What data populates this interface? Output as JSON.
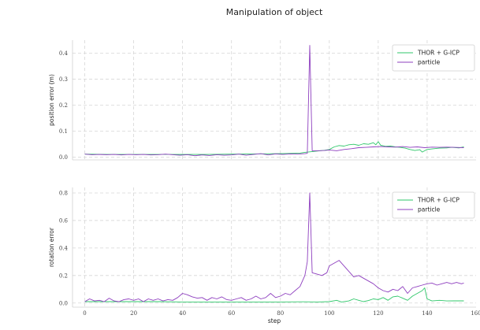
{
  "figure_title": "Manipulation of object",
  "colors": {
    "thor": "#2fc76a",
    "particle": "#8e3fbf"
  },
  "chart_data": [
    {
      "type": "line",
      "title": "",
      "xlabel": "",
      "ylabel": "position error (m)",
      "xlim": [
        -5,
        160
      ],
      "ylim": [
        -0.01,
        0.45
      ],
      "xticks": [
        0,
        20,
        40,
        60,
        80,
        100,
        120,
        140,
        160
      ],
      "yticks": [
        0.0,
        0.1,
        0.2,
        0.3,
        0.4
      ],
      "ytick_labels": [
        "0.0",
        "0.1",
        "0.2",
        "0.3",
        "0.4"
      ],
      "grid": true,
      "legend_position": "top-right",
      "series": [
        {
          "name": "THOR + G-ICP",
          "color": "#2fc76a",
          "points": [
            [
              0,
              0.012
            ],
            [
              10,
              0.011
            ],
            [
              20,
              0.011
            ],
            [
              30,
              0.011
            ],
            [
              40,
              0.011
            ],
            [
              50,
              0.011
            ],
            [
              60,
              0.012
            ],
            [
              70,
              0.013
            ],
            [
              80,
              0.014
            ],
            [
              88,
              0.016
            ],
            [
              90,
              0.019
            ],
            [
              92,
              0.021
            ],
            [
              95,
              0.024
            ],
            [
              98,
              0.027
            ],
            [
              100,
              0.03
            ],
            [
              102,
              0.04
            ],
            [
              104,
              0.045
            ],
            [
              106,
              0.043
            ],
            [
              108,
              0.048
            ],
            [
              110,
              0.05
            ],
            [
              112,
              0.046
            ],
            [
              114,
              0.052
            ],
            [
              116,
              0.05
            ],
            [
              118,
              0.056
            ],
            [
              119,
              0.048
            ],
            [
              120,
              0.06
            ],
            [
              121,
              0.046
            ],
            [
              123,
              0.042
            ],
            [
              125,
              0.043
            ],
            [
              127,
              0.04
            ],
            [
              129,
              0.038
            ],
            [
              131,
              0.035
            ],
            [
              133,
              0.03
            ],
            [
              135,
              0.026
            ],
            [
              137,
              0.029
            ],
            [
              138,
              0.02
            ],
            [
              139,
              0.025
            ],
            [
              140,
              0.03
            ],
            [
              142,
              0.032
            ],
            [
              145,
              0.035
            ],
            [
              148,
              0.036
            ],
            [
              150,
              0.038
            ],
            [
              153,
              0.036
            ],
            [
              155,
              0.04
            ]
          ]
        },
        {
          "name": "particle",
          "color": "#8e3fbf",
          "points": [
            [
              0,
              0.012
            ],
            [
              3,
              0.01
            ],
            [
              6,
              0.011
            ],
            [
              9,
              0.01
            ],
            [
              12,
              0.011
            ],
            [
              15,
              0.009
            ],
            [
              18,
              0.011
            ],
            [
              21,
              0.01
            ],
            [
              24,
              0.011
            ],
            [
              27,
              0.009
            ],
            [
              30,
              0.01
            ],
            [
              33,
              0.012
            ],
            [
              36,
              0.01
            ],
            [
              39,
              0.008
            ],
            [
              42,
              0.01
            ],
            [
              45,
              0.006
            ],
            [
              48,
              0.009
            ],
            [
              51,
              0.007
            ],
            [
              54,
              0.01
            ],
            [
              57,
              0.008
            ],
            [
              60,
              0.009
            ],
            [
              63,
              0.012
            ],
            [
              66,
              0.008
            ],
            [
              69,
              0.011
            ],
            [
              72,
              0.014
            ],
            [
              75,
              0.009
            ],
            [
              78,
              0.013
            ],
            [
              81,
              0.011
            ],
            [
              84,
              0.013
            ],
            [
              87,
              0.012
            ],
            [
              90,
              0.014
            ],
            [
              91,
              0.015
            ],
            [
              92,
              0.43
            ],
            [
              93,
              0.025
            ],
            [
              95,
              0.025
            ],
            [
              98,
              0.026
            ],
            [
              100,
              0.028
            ],
            [
              103,
              0.025
            ],
            [
              106,
              0.03
            ],
            [
              109,
              0.033
            ],
            [
              112,
              0.037
            ],
            [
              115,
              0.038
            ],
            [
              118,
              0.04
            ],
            [
              121,
              0.041
            ],
            [
              124,
              0.04
            ],
            [
              127,
              0.039
            ],
            [
              130,
              0.041
            ],
            [
              133,
              0.038
            ],
            [
              136,
              0.04
            ],
            [
              139,
              0.037
            ],
            [
              142,
              0.039
            ],
            [
              145,
              0.038
            ],
            [
              148,
              0.039
            ],
            [
              151,
              0.038
            ],
            [
              155,
              0.037
            ]
          ]
        }
      ]
    },
    {
      "type": "line",
      "title": "",
      "xlabel": "step",
      "ylabel": "rotation error",
      "xlim": [
        -5,
        160
      ],
      "ylim": [
        -0.03,
        0.84
      ],
      "xticks": [
        0,
        20,
        40,
        60,
        80,
        100,
        120,
        140,
        160
      ],
      "yticks": [
        0.0,
        0.2,
        0.4,
        0.6,
        0.8
      ],
      "ytick_labels": [
        "0.0",
        "0.2",
        "0.4",
        "0.6",
        "0.8"
      ],
      "xtick_labels": [
        "0",
        "20",
        "40",
        "60",
        "80",
        "100",
        "120",
        "140",
        "160"
      ],
      "grid": true,
      "legend_position": "top-right",
      "series": [
        {
          "name": "THOR + G-ICP",
          "color": "#2fc76a",
          "points": [
            [
              0,
              0.01
            ],
            [
              10,
              0.01
            ],
            [
              20,
              0.01
            ],
            [
              30,
              0.01
            ],
            [
              40,
              0.008
            ],
            [
              50,
              0.008
            ],
            [
              60,
              0.008
            ],
            [
              70,
              0.008
            ],
            [
              80,
              0.008
            ],
            [
              90,
              0.009
            ],
            [
              95,
              0.008
            ],
            [
              100,
              0.01
            ],
            [
              103,
              0.02
            ],
            [
              105,
              0.008
            ],
            [
              108,
              0.015
            ],
            [
              110,
              0.03
            ],
            [
              112,
              0.02
            ],
            [
              114,
              0.01
            ],
            [
              116,
              0.018
            ],
            [
              118,
              0.03
            ],
            [
              120,
              0.025
            ],
            [
              122,
              0.04
            ],
            [
              124,
              0.02
            ],
            [
              126,
              0.045
            ],
            [
              128,
              0.05
            ],
            [
              130,
              0.035
            ],
            [
              132,
              0.02
            ],
            [
              134,
              0.05
            ],
            [
              136,
              0.07
            ],
            [
              138,
              0.09
            ],
            [
              139,
              0.11
            ],
            [
              140,
              0.03
            ],
            [
              142,
              0.015
            ],
            [
              145,
              0.02
            ],
            [
              148,
              0.015
            ],
            [
              151,
              0.016
            ],
            [
              155,
              0.016
            ]
          ]
        },
        {
          "name": "particle",
          "color": "#8e3fbf",
          "points": [
            [
              0,
              0.01
            ],
            [
              2,
              0.03
            ],
            [
              4,
              0.015
            ],
            [
              6,
              0.02
            ],
            [
              8,
              0.01
            ],
            [
              10,
              0.035
            ],
            [
              12,
              0.015
            ],
            [
              14,
              0.01
            ],
            [
              16,
              0.025
            ],
            [
              18,
              0.03
            ],
            [
              20,
              0.02
            ],
            [
              22,
              0.03
            ],
            [
              24,
              0.01
            ],
            [
              26,
              0.03
            ],
            [
              28,
              0.02
            ],
            [
              30,
              0.03
            ],
            [
              32,
              0.015
            ],
            [
              34,
              0.025
            ],
            [
              36,
              0.02
            ],
            [
              38,
              0.04
            ],
            [
              40,
              0.07
            ],
            [
              42,
              0.06
            ],
            [
              44,
              0.045
            ],
            [
              46,
              0.035
            ],
            [
              48,
              0.04
            ],
            [
              50,
              0.02
            ],
            [
              52,
              0.04
            ],
            [
              54,
              0.03
            ],
            [
              56,
              0.045
            ],
            [
              58,
              0.025
            ],
            [
              60,
              0.02
            ],
            [
              62,
              0.03
            ],
            [
              64,
              0.04
            ],
            [
              66,
              0.02
            ],
            [
              68,
              0.03
            ],
            [
              70,
              0.05
            ],
            [
              72,
              0.03
            ],
            [
              74,
              0.04
            ],
            [
              76,
              0.07
            ],
            [
              78,
              0.04
            ],
            [
              80,
              0.05
            ],
            [
              82,
              0.07
            ],
            [
              84,
              0.06
            ],
            [
              86,
              0.09
            ],
            [
              88,
              0.12
            ],
            [
              90,
              0.2
            ],
            [
              91,
              0.3
            ],
            [
              92,
              0.8
            ],
            [
              93,
              0.22
            ],
            [
              95,
              0.21
            ],
            [
              97,
              0.2
            ],
            [
              99,
              0.22
            ],
            [
              100,
              0.27
            ],
            [
              102,
              0.29
            ],
            [
              104,
              0.31
            ],
            [
              106,
              0.27
            ],
            [
              108,
              0.23
            ],
            [
              110,
              0.19
            ],
            [
              112,
              0.2
            ],
            [
              114,
              0.18
            ],
            [
              116,
              0.16
            ],
            [
              118,
              0.14
            ],
            [
              120,
              0.11
            ],
            [
              122,
              0.09
            ],
            [
              124,
              0.08
            ],
            [
              126,
              0.1
            ],
            [
              128,
              0.09
            ],
            [
              130,
              0.12
            ],
            [
              132,
              0.07
            ],
            [
              134,
              0.11
            ],
            [
              136,
              0.12
            ],
            [
              138,
              0.13
            ],
            [
              140,
              0.14
            ],
            [
              142,
              0.145
            ],
            [
              144,
              0.13
            ],
            [
              146,
              0.14
            ],
            [
              148,
              0.15
            ],
            [
              150,
              0.14
            ],
            [
              152,
              0.15
            ],
            [
              154,
              0.14
            ],
            [
              155,
              0.145
            ]
          ]
        }
      ]
    }
  ]
}
